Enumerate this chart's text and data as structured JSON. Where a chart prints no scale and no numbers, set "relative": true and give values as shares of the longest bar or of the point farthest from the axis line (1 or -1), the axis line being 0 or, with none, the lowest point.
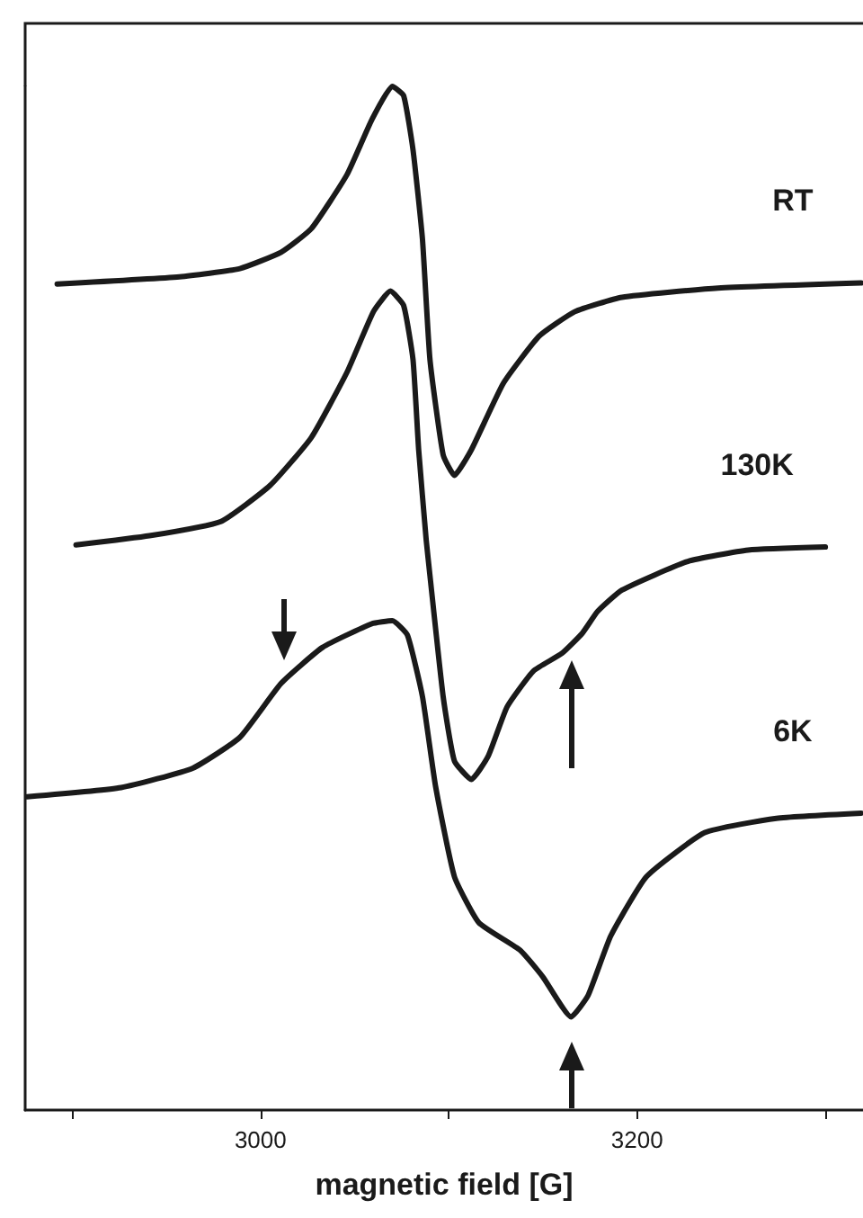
{
  "chart_data": {
    "type": "line",
    "relative": true,
    "xlabel": "magnetic field [G]",
    "xlim": [
      2875,
      3320
    ],
    "xticks": [
      {
        "value": 2900,
        "label": null
      },
      3000,
      {
        "value": 3100,
        "label": null
      },
      3200,
      {
        "value": 3300,
        "label": null
      }
    ],
    "tick_labels": "x",
    "grid": false,
    "legend": false,
    "marker": "none",
    "line_style": "solid",
    "series": [
      {
        "name": "RT",
        "color": "#1a1a1a",
        "x": [
          2892,
          2957,
          2989,
          3011,
          3027,
          3046,
          3059,
          3070,
          3076,
          3081,
          3086,
          3090,
          3097,
          3103,
          3112,
          3129,
          3148,
          3167,
          3192,
          3243,
          3319
        ],
        "values": [
          0.807,
          0.814,
          0.822,
          0.838,
          0.861,
          0.914,
          0.967,
          1.0,
          0.991,
          0.938,
          0.851,
          0.733,
          0.64,
          0.62,
          0.645,
          0.71,
          0.756,
          0.78,
          0.794,
          0.803,
          0.808
        ]
      },
      {
        "name": "130K",
        "color": "#1a1a1a",
        "x": [
          2902,
          2941,
          2979,
          3005,
          3027,
          3046,
          3060,
          3069,
          3076,
          3081,
          3084,
          3088,
          3090,
          3097,
          3103,
          3112,
          3121,
          3131,
          3145,
          3160,
          3171,
          3179,
          3192,
          3227,
          3259,
          3300
        ],
        "values": [
          0.552,
          0.561,
          0.575,
          0.61,
          0.657,
          0.721,
          0.78,
          0.8,
          0.786,
          0.733,
          0.645,
          0.557,
          0.522,
          0.404,
          0.341,
          0.323,
          0.346,
          0.394,
          0.429,
          0.446,
          0.466,
          0.487,
          0.508,
          0.536,
          0.547,
          0.55
        ]
      },
      {
        "name": "6K",
        "color": "#1a1a1a",
        "x": [
          2876,
          2926,
          2964,
          2989,
          3011,
          3033,
          3059,
          3070,
          3078,
          3086,
          3093,
          3103,
          3116,
          3138,
          3150,
          3165,
          3174,
          3186,
          3205,
          3236,
          3274,
          3319
        ],
        "values": [
          0.306,
          0.315,
          0.334,
          0.364,
          0.417,
          0.452,
          0.475,
          0.478,
          0.464,
          0.404,
          0.316,
          0.228,
          0.183,
          0.156,
          0.13,
          0.091,
          0.112,
          0.17,
          0.228,
          0.271,
          0.285,
          0.29
        ]
      }
    ]
  }
}
